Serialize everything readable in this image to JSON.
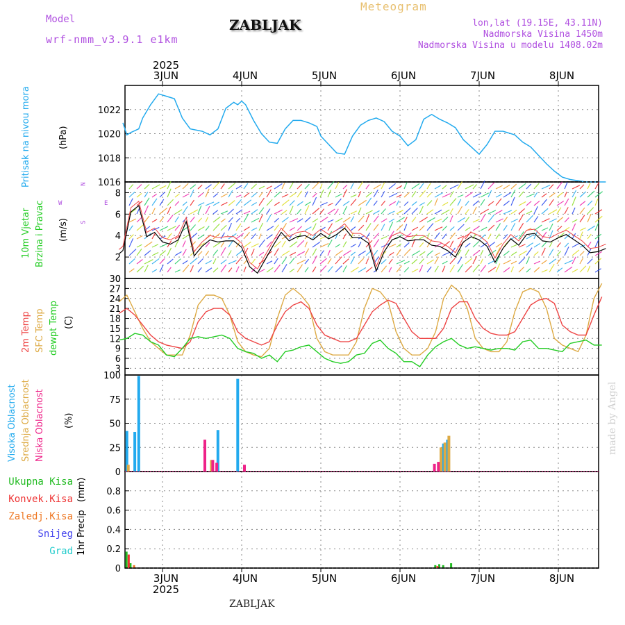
{
  "header": {
    "model_label": "Model",
    "model_value": "wrf-nmm_v3.9.1 e1km",
    "title": "ZABLJAK",
    "meteogram": "Meteogram",
    "lonlat": "lon,lat (19.15E, 43.11N)",
    "altitude": "Nadmorska Visina 1450m",
    "model_altitude": "Nadmorska Visina u modelu 1408.02m",
    "footer_title": "ZABLJAK",
    "watermark": "made by Angel",
    "year": "2025",
    "compass_n": "N",
    "compass_w": "W",
    "compass_e": "E",
    "compass_s": "S"
  },
  "colors": {
    "pressure": "#22aaee",
    "temp2m": "#ee4444",
    "sfc": "#ddaa44",
    "dewpt": "#22cc22",
    "high_cloud": "#22aaee",
    "mid_cloud": "#ddaa44",
    "low_cloud": "#ee2288",
    "total_precip": "#22bb22",
    "conv_precip": "#ee3333",
    "frozen": "#ee7722",
    "snow": "#4444ee",
    "grad": "#22cccc"
  },
  "chart_data": [
    {
      "type": "line",
      "panel": "pressure",
      "ylabel": "Pritisak na nivou mora",
      "unit": "(hPa)",
      "ylim": [
        1016,
        1024
      ],
      "yticks": [
        1016,
        1018,
        1020,
        1022
      ],
      "x_labels": [
        "3JUN",
        "4JUN",
        "5JUN",
        "6JUN",
        "7JUN",
        "8JUN"
      ],
      "x": [
        -0.5,
        -0.45,
        -0.4,
        -0.3,
        -0.25,
        -0.15,
        -0.05,
        0.05,
        0.15,
        0.25,
        0.35,
        0.5,
        0.6,
        0.7,
        0.8,
        0.9,
        0.95,
        1.0,
        1.05,
        1.15,
        1.25,
        1.35,
        1.45,
        1.55,
        1.65,
        1.75,
        1.85,
        1.95,
        2.0,
        2.1,
        2.2,
        2.3,
        2.4,
        2.5,
        2.6,
        2.7,
        2.8,
        2.9,
        3.0,
        3.1,
        3.2,
        3.3,
        3.4,
        3.5,
        3.6,
        3.7,
        3.8,
        3.9,
        4.0,
        4.1,
        4.2,
        4.3,
        4.45,
        4.55,
        4.65,
        4.75,
        4.85,
        4.95,
        5.05,
        5.15,
        5.25,
        5.35,
        5.45,
        5.55,
        5.6
      ],
      "values": [
        1020.9,
        1019.9,
        1020.1,
        1020.4,
        1021.3,
        1022.4,
        1023.3,
        1023.1,
        1022.9,
        1021.3,
        1020.4,
        1020.2,
        1019.9,
        1020.4,
        1022.1,
        1022.6,
        1022.4,
        1022.7,
        1022.4,
        1021.1,
        1020.0,
        1019.3,
        1019.2,
        1020.4,
        1021.1,
        1021.1,
        1020.9,
        1020.6,
        1019.8,
        1019.1,
        1018.4,
        1018.3,
        1019.8,
        1020.7,
        1021.1,
        1021.3,
        1021.0,
        1020.2,
        1019.8,
        1019.0,
        1019.5,
        1021.2,
        1021.6,
        1021.2,
        1020.9,
        1020.5,
        1019.5,
        1018.9,
        1018.3,
        1019.1,
        1020.2,
        1020.2,
        1019.9,
        1019.3,
        1018.9,
        1018.2,
        1017.5,
        1016.9,
        1016.4,
        1016.2,
        1016.1,
        1016.0,
        1016.0,
        1016.0,
        1016.0
      ]
    },
    {
      "type": "line",
      "panel": "wind",
      "ylabel": "10m Vjetar Brzina i Pravac",
      "unit": "(m/s)",
      "ylim": [
        0,
        9
      ],
      "yticks": [
        0,
        2,
        4,
        6,
        8
      ],
      "x": [
        -0.55,
        -0.5,
        -0.4,
        -0.3,
        -0.2,
        -0.1,
        0.0,
        0.1,
        0.2,
        0.3,
        0.4,
        0.5,
        0.6,
        0.7,
        0.8,
        0.9,
        1.0,
        1.1,
        1.2,
        1.3,
        1.4,
        1.5,
        1.6,
        1.7,
        1.8,
        1.9,
        2.0,
        2.1,
        2.2,
        2.3,
        2.4,
        2.5,
        2.6,
        2.7,
        2.8,
        2.9,
        3.0,
        3.1,
        3.2,
        3.3,
        3.4,
        3.5,
        3.6,
        3.7,
        3.8,
        3.9,
        4.0,
        4.1,
        4.2,
        4.3,
        4.4,
        4.5,
        4.6,
        4.7,
        4.8,
        4.9,
        5.0,
        5.1,
        5.2,
        5.3,
        5.4,
        5.5,
        5.6
      ],
      "values": [
        2.3,
        2.6,
        6.2,
        6.8,
        3.9,
        4.3,
        3.4,
        3.2,
        3.6,
        5.3,
        2.1,
        3.0,
        3.6,
        3.4,
        3.5,
        3.5,
        2.9,
        1.1,
        0.5,
        1.8,
        3.1,
        4.3,
        3.5,
        3.9,
        4.0,
        3.6,
        4.2,
        3.7,
        4.1,
        4.7,
        3.8,
        3.8,
        3.3,
        0.7,
        2.5,
        3.6,
        3.9,
        3.5,
        3.6,
        3.6,
        3.1,
        3.0,
        2.6,
        2.0,
        3.4,
        3.9,
        3.6,
        3.0,
        1.5,
        2.8,
        3.7,
        3.1,
        4.1,
        4.2,
        3.5,
        3.4,
        3.8,
        4.1,
        3.6,
        3.1,
        2.4,
        2.5,
        2.8
      ]
    },
    {
      "type": "line",
      "panel": "temperature",
      "unit": "(C)",
      "ylim": [
        1,
        30
      ],
      "yticks": [
        3,
        6,
        9,
        12,
        15,
        18,
        21,
        24,
        27,
        30
      ],
      "series": [
        {
          "name": "2m Temp",
          "x": [
            -0.55,
            -0.45,
            -0.35,
            -0.25,
            -0.15,
            -0.05,
            0.05,
            0.15,
            0.25,
            0.35,
            0.45,
            0.55,
            0.65,
            0.75,
            0.85,
            0.95,
            1.05,
            1.15,
            1.25,
            1.35,
            1.45,
            1.55,
            1.65,
            1.75,
            1.85,
            1.95,
            2.05,
            2.15,
            2.25,
            2.35,
            2.45,
            2.55,
            2.65,
            2.75,
            2.85,
            2.95,
            3.05,
            3.15,
            3.25,
            3.35,
            3.45,
            3.55,
            3.65,
            3.75,
            3.85,
            3.95,
            4.05,
            4.15,
            4.25,
            4.35,
            4.45,
            4.55,
            4.65,
            4.75,
            4.85,
            4.95,
            5.05,
            5.15,
            5.25,
            5.35,
            5.45,
            5.55
          ],
          "values": [
            19.5,
            21,
            19,
            16,
            13,
            11,
            10,
            9.5,
            9,
            11,
            17,
            20,
            21,
            21,
            19,
            14,
            12,
            11,
            10,
            11,
            16,
            20,
            22,
            23,
            21,
            16,
            13,
            12,
            11,
            11,
            12,
            16,
            20,
            22,
            23.5,
            22.5,
            18,
            14,
            12,
            12,
            12,
            15,
            21,
            23,
            23,
            18,
            15,
            13.5,
            13,
            13,
            14,
            18,
            22,
            23.5,
            24,
            22.5,
            16,
            14,
            13,
            13,
            19,
            24.5
          ]
        },
        {
          "name": "SFC Temp",
          "x": [
            -0.55,
            -0.45,
            -0.35,
            -0.25,
            -0.15,
            -0.05,
            0.05,
            0.15,
            0.25,
            0.35,
            0.45,
            0.55,
            0.65,
            0.75,
            0.85,
            0.95,
            1.05,
            1.15,
            1.25,
            1.35,
            1.45,
            1.55,
            1.65,
            1.75,
            1.85,
            1.95,
            2.05,
            2.15,
            2.25,
            2.35,
            2.45,
            2.55,
            2.65,
            2.75,
            2.85,
            2.95,
            3.05,
            3.15,
            3.25,
            3.35,
            3.45,
            3.55,
            3.65,
            3.75,
            3.85,
            3.95,
            4.05,
            4.15,
            4.25,
            4.35,
            4.45,
            4.55,
            4.65,
            4.75,
            4.85,
            4.95,
            5.05,
            5.15,
            5.25,
            5.35,
            5.45,
            5.55
          ],
          "values": [
            23,
            25,
            20,
            15,
            11,
            9,
            7,
            7,
            7,
            13,
            22,
            25,
            25,
            24,
            19,
            11,
            8,
            7,
            6.5,
            9,
            18,
            25,
            27,
            25,
            22,
            12,
            8,
            7,
            7,
            7,
            11,
            21,
            27,
            26,
            23,
            14,
            9,
            7,
            7,
            9,
            14,
            24,
            28,
            26,
            21,
            12,
            9,
            8,
            8,
            11,
            20,
            26,
            27,
            26,
            21,
            12,
            10,
            9,
            8,
            13,
            24,
            28.5
          ]
        },
        {
          "name": "dewpt Temp",
          "x": [
            -0.55,
            -0.45,
            -0.35,
            -0.25,
            -0.15,
            -0.05,
            0.05,
            0.15,
            0.25,
            0.35,
            0.45,
            0.55,
            0.65,
            0.75,
            0.85,
            0.95,
            1.05,
            1.15,
            1.25,
            1.35,
            1.45,
            1.55,
            1.65,
            1.75,
            1.85,
            1.95,
            2.05,
            2.15,
            2.25,
            2.35,
            2.45,
            2.55,
            2.65,
            2.75,
            2.85,
            2.95,
            3.05,
            3.15,
            3.25,
            3.35,
            3.45,
            3.55,
            3.65,
            3.75,
            3.85,
            3.95,
            4.05,
            4.15,
            4.25,
            4.35,
            4.45,
            4.55,
            4.65,
            4.75,
            4.85,
            4.95,
            5.05,
            5.15,
            5.25,
            5.35,
            5.45,
            5.55
          ],
          "values": [
            11.5,
            12,
            13.5,
            13,
            11,
            10,
            7,
            6.5,
            9,
            12,
            12.5,
            12,
            12.5,
            13,
            12,
            9,
            8,
            7.5,
            6,
            7,
            5,
            8,
            8.5,
            9.5,
            10,
            8,
            6,
            5,
            4.5,
            5,
            7,
            7.5,
            10.5,
            11.5,
            9,
            7.5,
            5,
            5,
            3.5,
            7,
            9.5,
            11,
            12,
            10,
            9,
            9.5,
            9,
            8.5,
            9,
            9,
            8.5,
            11,
            11.5,
            9,
            9,
            8.5,
            8,
            10.5,
            11,
            11.5,
            10,
            10
          ]
        }
      ]
    },
    {
      "type": "bar",
      "panel": "cloud",
      "unit": "(%)",
      "ylim": [
        0,
        100
      ],
      "yticks": [
        0,
        25,
        50,
        75,
        100
      ],
      "series": [
        {
          "name": "Visoka Oblacnost",
          "x": [
            -0.45,
            -0.35,
            -0.3,
            -0.25,
            0.5,
            0.55,
            0.6,
            0.65,
            0.7,
            0.95,
            1.0,
            1.05,
            3.45,
            3.5,
            3.55,
            3.6
          ],
          "values": [
            42,
            41,
            99,
            0,
            0,
            0,
            0,
            0,
            43,
            96,
            0,
            0,
            0,
            0,
            29,
            33
          ]
        },
        {
          "name": "Srednja Oblacnost",
          "x": [
            -0.45,
            -0.35,
            0.6,
            0.65,
            3.5,
            3.55,
            3.6
          ],
          "values": [
            7,
            0,
            12,
            0,
            25,
            30,
            37
          ]
        },
        {
          "name": "Niska Oblacnost",
          "x": [
            0.5,
            0.55,
            0.6,
            0.65,
            0.95,
            1.0,
            3.4,
            3.45,
            3.5
          ],
          "values": [
            33,
            0,
            12,
            9,
            0,
            7,
            8,
            10,
            0
          ]
        }
      ]
    },
    {
      "type": "bar",
      "panel": "precip",
      "ylabel": "1hr Precip",
      "unit": "(mm)",
      "ylim": [
        0,
        1
      ],
      "yticks": [
        0,
        0.2,
        0.4,
        0.6,
        0.8
      ],
      "series": [
        {
          "name": "Ukupna Kisa",
          "x": [
            -0.45,
            -0.4,
            3.45,
            3.5,
            3.55,
            3.65
          ],
          "values": [
            0.17,
            0.05,
            0.03,
            0.04,
            0.03,
            0.05
          ]
        },
        {
          "name": "Konvek.Kisa",
          "x": [
            -0.44,
            3.46
          ],
          "values": [
            0.14,
            0.02
          ]
        },
        {
          "name": "Zaledj.Kisa",
          "x": [
            -0.39
          ],
          "values": [
            0.03
          ]
        },
        {
          "name": "Snijeg",
          "x": [],
          "values": []
        },
        {
          "name": "Grad",
          "x": [],
          "values": []
        }
      ]
    }
  ],
  "legends": {
    "pressure": [
      "Pritisak na nivou mora"
    ],
    "wind": [
      "10m Vjetar",
      "Brzina i Pravac"
    ],
    "temp": [
      "2m Temp",
      "SFC Temp",
      "dewpt Temp"
    ],
    "cloud": [
      "Visoka Oblacnost",
      "Srednja Oblacnost",
      "Niska Oblacnost"
    ],
    "precip": [
      "Ukupna Kisa",
      "Konvek.Kisa",
      "Zaledj.Kisa",
      "Snijeg",
      "Grad"
    ]
  }
}
